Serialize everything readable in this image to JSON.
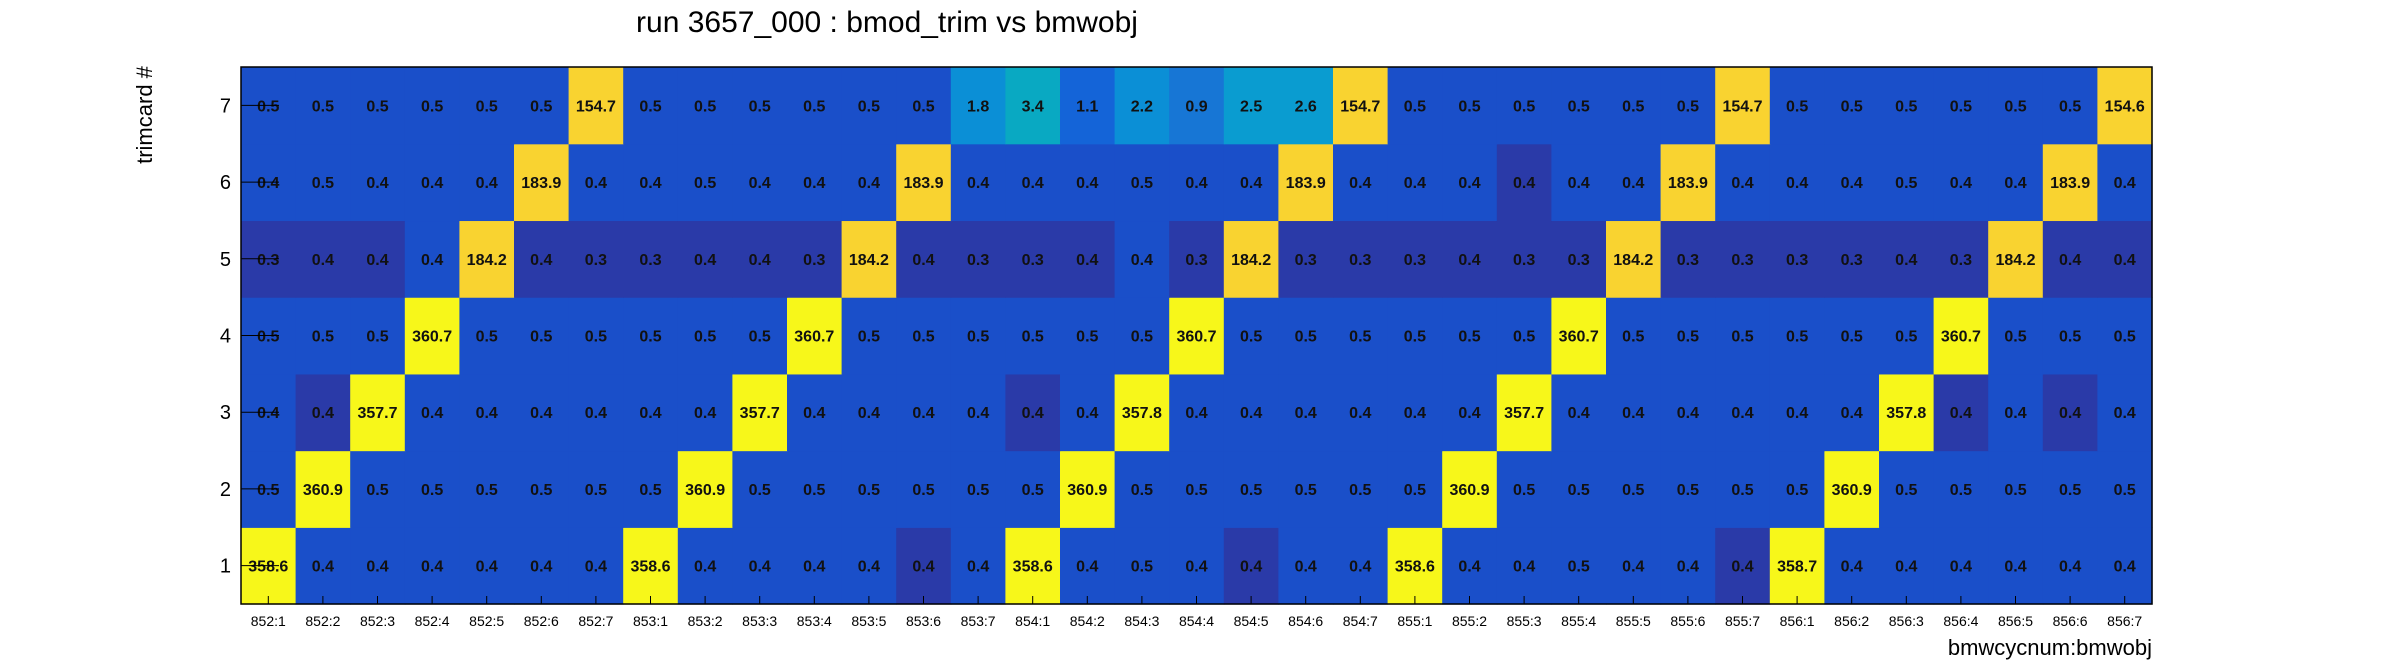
{
  "chart_data": {
    "type": "heatmap",
    "title": "run 3657_000 : bmod_trim vs bmwobj",
    "xlabel": "bmwcycnum:bmwobj",
    "ylabel": "trimcard #",
    "x_categories": [
      "852:1",
      "852:2",
      "852:3",
      "852:4",
      "852:5",
      "852:6",
      "852:7",
      "853:1",
      "853:2",
      "853:3",
      "853:4",
      "853:5",
      "853:6",
      "853:7",
      "854:1",
      "854:2",
      "854:3",
      "854:4",
      "854:5",
      "854:6",
      "854:7",
      "855:1",
      "855:2",
      "855:3",
      "855:4",
      "855:5",
      "855:6",
      "855:7",
      "856:1",
      "856:2",
      "856:3",
      "856:4",
      "856:5",
      "856:6",
      "856:7"
    ],
    "y_categories": [
      "1",
      "2",
      "3",
      "4",
      "5",
      "6",
      "7"
    ],
    "values": [
      [
        358.6,
        0.4,
        0.4,
        0.4,
        0.4,
        0.4,
        0.4,
        358.6,
        0.4,
        0.4,
        0.4,
        0.4,
        0.4,
        0.4,
        358.6,
        0.4,
        0.5,
        0.4,
        0.4,
        0.4,
        0.4,
        358.6,
        0.4,
        0.4,
        0.5,
        0.4,
        0.4,
        0.4,
        358.7,
        0.4,
        0.4,
        0.4,
        0.4,
        0.4,
        0.4
      ],
      [
        0.5,
        360.9,
        0.5,
        0.5,
        0.5,
        0.5,
        0.5,
        0.5,
        360.9,
        0.5,
        0.5,
        0.5,
        0.5,
        0.5,
        0.5,
        360.9,
        0.5,
        0.5,
        0.5,
        0.5,
        0.5,
        0.5,
        360.9,
        0.5,
        0.5,
        0.5,
        0.5,
        0.5,
        0.5,
        360.9,
        0.5,
        0.5,
        0.5,
        0.5,
        0.5
      ],
      [
        0.4,
        0.4,
        357.7,
        0.4,
        0.4,
        0.4,
        0.4,
        0.4,
        0.4,
        357.7,
        0.4,
        0.4,
        0.4,
        0.4,
        0.4,
        0.4,
        357.8,
        0.4,
        0.4,
        0.4,
        0.4,
        0.4,
        0.4,
        357.7,
        0.4,
        0.4,
        0.4,
        0.4,
        0.4,
        0.4,
        357.8,
        0.4,
        0.4,
        0.4,
        0.4
      ],
      [
        0.5,
        0.5,
        0.5,
        360.7,
        0.5,
        0.5,
        0.5,
        0.5,
        0.5,
        0.5,
        360.7,
        0.5,
        0.5,
        0.5,
        0.5,
        0.5,
        0.5,
        360.7,
        0.5,
        0.5,
        0.5,
        0.5,
        0.5,
        0.5,
        360.7,
        0.5,
        0.5,
        0.5,
        0.5,
        0.5,
        0.5,
        360.7,
        0.5,
        0.5,
        0.5
      ],
      [
        0.3,
        0.4,
        0.4,
        0.4,
        184.2,
        0.4,
        0.3,
        0.3,
        0.4,
        0.4,
        0.3,
        184.2,
        0.4,
        0.3,
        0.3,
        0.4,
        0.4,
        0.3,
        184.2,
        0.3,
        0.3,
        0.3,
        0.4,
        0.3,
        0.3,
        184.2,
        0.3,
        0.3,
        0.3,
        0.3,
        0.4,
        0.3,
        184.2,
        0.4,
        0.4
      ],
      [
        0.4,
        0.5,
        0.4,
        0.4,
        0.4,
        183.9,
        0.4,
        0.4,
        0.5,
        0.4,
        0.4,
        0.4,
        183.9,
        0.4,
        0.4,
        0.4,
        0.5,
        0.4,
        0.4,
        183.9,
        0.4,
        0.4,
        0.4,
        0.4,
        0.4,
        0.4,
        183.9,
        0.4,
        0.4,
        0.4,
        0.5,
        0.4,
        0.4,
        183.9,
        0.4
      ],
      [
        0.5,
        0.5,
        0.5,
        0.5,
        0.5,
        0.5,
        154.7,
        0.5,
        0.5,
        0.5,
        0.5,
        0.5,
        0.5,
        1.8,
        3.4,
        1.1,
        2.2,
        0.9,
        2.5,
        2.6,
        154.7,
        0.5,
        0.5,
        0.5,
        0.5,
        0.5,
        0.5,
        154.7,
        0.5,
        0.5,
        0.5,
        0.5,
        0.5,
        0.5,
        154.6
      ]
    ],
    "dark_cells": [
      [
        0,
        12
      ],
      [
        0,
        18
      ],
      [
        0,
        27
      ],
      [
        2,
        1
      ],
      [
        2,
        14
      ],
      [
        2,
        31
      ],
      [
        2,
        33
      ],
      [
        4,
        0
      ],
      [
        4,
        1
      ],
      [
        4,
        2
      ],
      [
        4,
        5
      ],
      [
        4,
        6
      ],
      [
        4,
        7
      ],
      [
        4,
        8
      ],
      [
        4,
        9
      ],
      [
        4,
        10
      ],
      [
        4,
        12
      ],
      [
        4,
        13
      ],
      [
        4,
        14
      ],
      [
        4,
        15
      ],
      [
        4,
        17
      ],
      [
        4,
        19
      ],
      [
        4,
        20
      ],
      [
        4,
        21
      ],
      [
        4,
        22
      ],
      [
        4,
        23
      ],
      [
        4,
        24
      ],
      [
        4,
        26
      ],
      [
        4,
        27
      ],
      [
        4,
        28
      ],
      [
        4,
        29
      ],
      [
        4,
        30
      ],
      [
        4,
        31
      ],
      [
        4,
        33
      ],
      [
        4,
        34
      ],
      [
        5,
        23
      ]
    ],
    "colors": {
      "base": "#1a4fc9",
      "dark": "#2a3aa8",
      "high": "#f7f71a",
      "mid": "#f9d330",
      "teal_light": "#0b8fd6",
      "teal": "#09a9c2",
      "cyan_mid": "#0a9cd0",
      "blue_light": "#1464d8",
      "blue_mid": "#1776d5"
    },
    "grid": false,
    "legend": "none"
  }
}
